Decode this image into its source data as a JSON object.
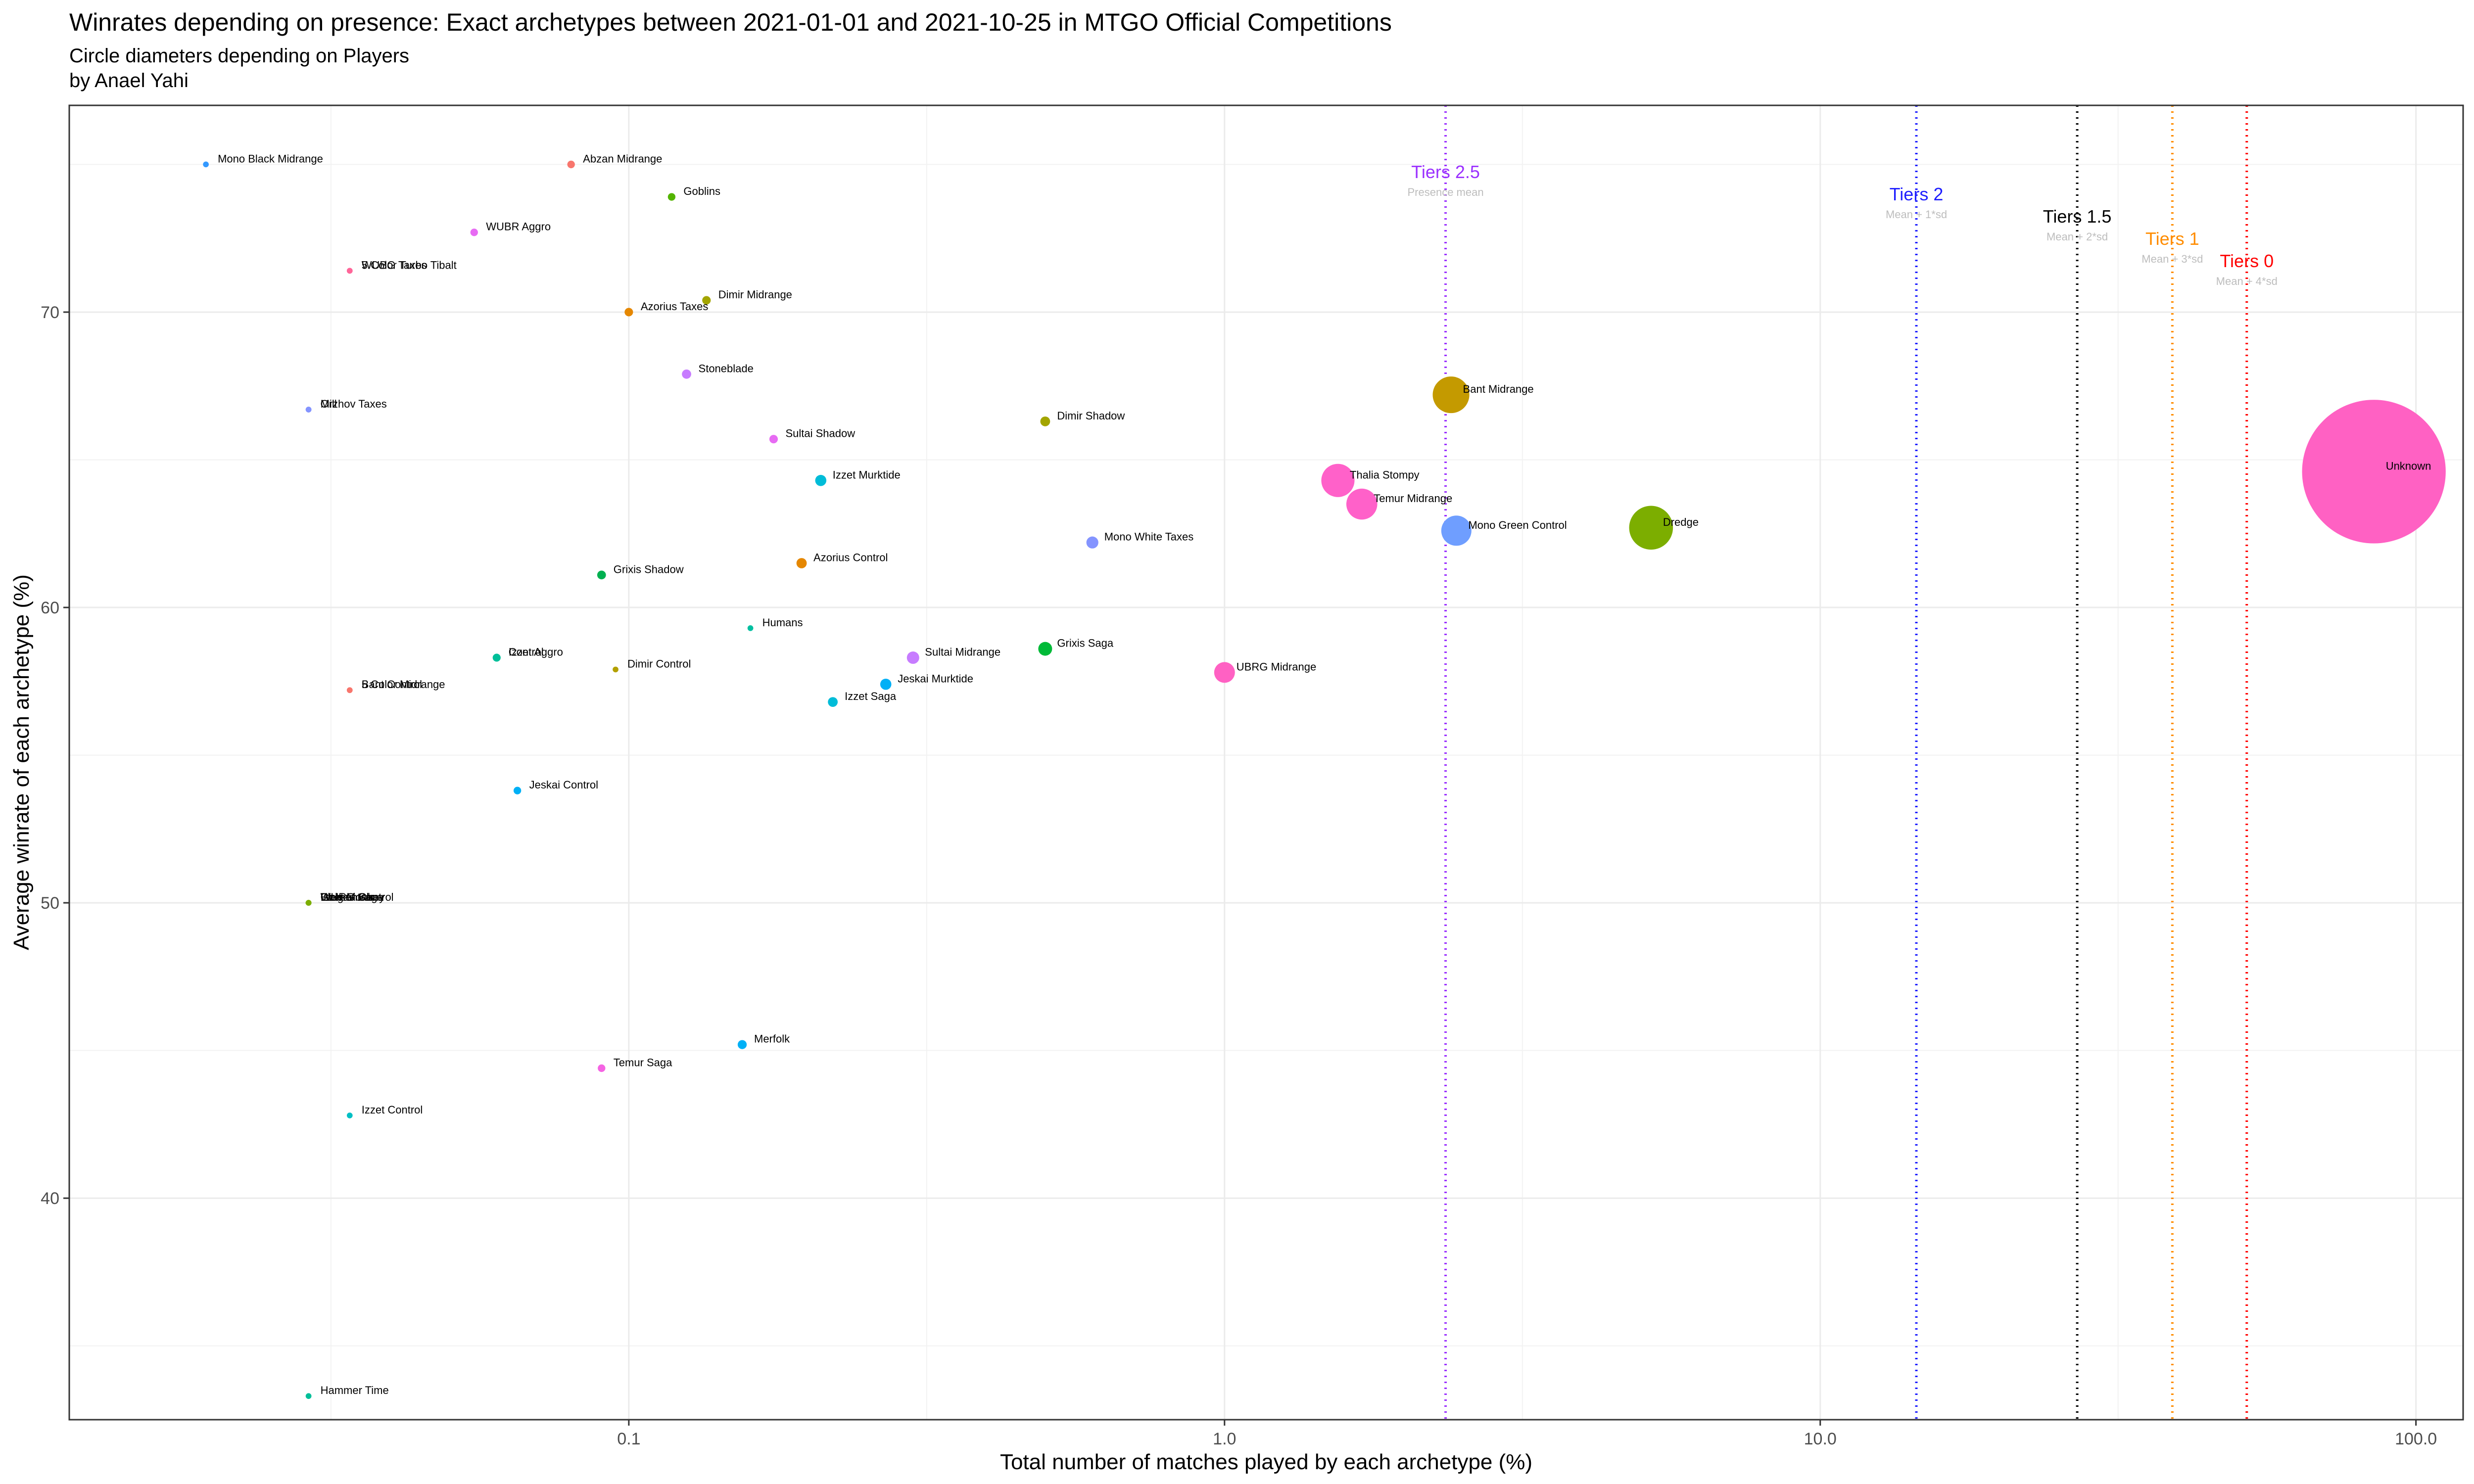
{
  "chart_data": {
    "type": "scatter",
    "title": "Winrates depending on presence: Exact archetypes  between 2021-01-01 and 2021-10-25 in MTGO Official Competitions",
    "subtitle": "Circle diameters depending on Players",
    "author": "by Anael Yahi",
    "xlabel": "Total number of matches played by each archetype (%)",
    "ylabel": "Average winrate of each archetype (%)",
    "x_scale": "log10",
    "xlim": [
      0.0115,
      120
    ],
    "ylim": [
      32.5,
      77
    ],
    "x_ticks": [
      0.1,
      1.0,
      10.0,
      100.0
    ],
    "x_tick_labels": [
      "0.1",
      "1.0",
      "10.0",
      "100.0"
    ],
    "y_ticks": [
      40,
      50,
      60,
      70
    ],
    "y_tick_labels": [
      "40",
      "50",
      "60",
      "70"
    ],
    "grid": true,
    "tiers": [
      {
        "name": "Tiers 2.5",
        "sub": "Presence mean",
        "x": 2.35,
        "color": "#9B30FF"
      },
      {
        "name": "Tiers 2",
        "sub": "Mean + 1*sd",
        "x": 14.5,
        "color": "#1E1EFF"
      },
      {
        "name": "Tiers 1.5",
        "sub": "Mean + 2*sd",
        "x": 27,
        "color": "#000000"
      },
      {
        "name": "Tiers 1",
        "sub": "Mean + 3*sd",
        "x": 39,
        "color": "#FF8C00"
      },
      {
        "name": "Tiers 0",
        "sub": "Mean + 4*sd",
        "x": 52,
        "color": "#FF0000"
      }
    ],
    "points": [
      {
        "name": "Mono Black Midrange",
        "x": 0.0195,
        "y": 75.0,
        "size": 0.7,
        "color": "#3399FF"
      },
      {
        "name": "Abzan Midrange",
        "x": 0.08,
        "y": 75.0,
        "size": 1.2,
        "color": "#F8766D"
      },
      {
        "name": "Goblins",
        "x": 0.118,
        "y": 73.9,
        "size": 1.2,
        "color": "#53B400"
      },
      {
        "name": "WUBR Aggro",
        "x": 0.055,
        "y": 72.7,
        "size": 1.2,
        "color": "#E76BF3"
      },
      {
        "name": "5 Color Turbo Tibalt",
        "x": 0.034,
        "y": 71.4,
        "size": 0.7,
        "color": "#FF6699"
      },
      {
        "name": "WUBG Taxes",
        "x": 0.034,
        "y": 71.4,
        "size": 0.7,
        "color": "#FF6699"
      },
      {
        "name": "Dimir Midrange",
        "x": 0.135,
        "y": 70.4,
        "size": 1.5,
        "color": "#A3A500"
      },
      {
        "name": "Azorius Taxes",
        "x": 0.1,
        "y": 70.0,
        "size": 1.5,
        "color": "#E58700"
      },
      {
        "name": "Stoneblade",
        "x": 0.125,
        "y": 67.9,
        "size": 1.8,
        "color": "#C77CFF"
      },
      {
        "name": "Orzhov Taxes",
        "x": 0.029,
        "y": 66.7,
        "size": 0.7,
        "color": "#8494FF"
      },
      {
        "name": "Mill",
        "x": 0.029,
        "y": 66.7,
        "size": 0.7,
        "color": "#8494FF"
      },
      {
        "name": "Sultai Shadow",
        "x": 0.175,
        "y": 65.7,
        "size": 1.5,
        "color": "#E76BF3"
      },
      {
        "name": "Dimir Shadow",
        "x": 0.5,
        "y": 66.3,
        "size": 2.0,
        "color": "#A3A500"
      },
      {
        "name": "Bant Midrange",
        "x": 2.4,
        "y": 67.2,
        "size": 28,
        "color": "#C49A00"
      },
      {
        "name": "Izzet Murktide",
        "x": 0.21,
        "y": 64.3,
        "size": 2.6,
        "color": "#00BCD8"
      },
      {
        "name": "Thalia Stompy",
        "x": 1.55,
        "y": 64.3,
        "size": 23,
        "color": "#FF61C9"
      },
      {
        "name": "Temur Midrange",
        "x": 1.7,
        "y": 63.5,
        "size": 20,
        "color": "#FF61C9"
      },
      {
        "name": "Mono Green Control",
        "x": 2.45,
        "y": 62.6,
        "size": 19,
        "color": "#6F9EFF"
      },
      {
        "name": "Dredge",
        "x": 5.2,
        "y": 62.7,
        "size": 40,
        "color": "#7CAE00"
      },
      {
        "name": "Unknown",
        "x": 85,
        "y": 64.6,
        "size": 430,
        "color": "#FF61C3"
      },
      {
        "name": "Mono White Taxes",
        "x": 0.6,
        "y": 62.2,
        "size": 3.0,
        "color": "#8494FF"
      },
      {
        "name": "Azorius Control",
        "x": 0.195,
        "y": 61.5,
        "size": 2.2,
        "color": "#E58700"
      },
      {
        "name": "Grixis Shadow",
        "x": 0.09,
        "y": 61.1,
        "size": 1.6,
        "color": "#00B050"
      },
      {
        "name": "Humans",
        "x": 0.16,
        "y": 59.3,
        "size": 0.7,
        "color": "#00BFA0"
      },
      {
        "name": "Grixis Saga",
        "x": 0.5,
        "y": 58.6,
        "size": 4.0,
        "color": "#00BA38"
      },
      {
        "name": "Sultai Midrange",
        "x": 0.3,
        "y": 58.3,
        "size": 3.2,
        "color": "#C77CFF"
      },
      {
        "name": "Izzet Aggro",
        "x": 0.06,
        "y": 58.3,
        "size": 1.3,
        "color": "#00BF99"
      },
      {
        "name": "Control",
        "x": 0.06,
        "y": 58.3,
        "size": 1.3,
        "color": "#00BF99"
      },
      {
        "name": "Dimir Control",
        "x": 0.095,
        "y": 57.9,
        "size": 0.7,
        "color": "#B3A000"
      },
      {
        "name": "Bant Control",
        "x": 0.034,
        "y": 57.2,
        "size": 0.7,
        "color": "#F8766D"
      },
      {
        "name": "5 Color Midrange",
        "x": 0.034,
        "y": 57.2,
        "size": 0.7,
        "color": "#F8766D"
      },
      {
        "name": "UBRG Midrange",
        "x": 1.0,
        "y": 57.8,
        "size": 9,
        "color": "#FF61C3"
      },
      {
        "name": "Jeskai Murktide",
        "x": 0.27,
        "y": 57.4,
        "size": 2.6,
        "color": "#00B0F6"
      },
      {
        "name": "Izzet Saga",
        "x": 0.22,
        "y": 56.8,
        "size": 2.0,
        "color": "#00BCD8"
      },
      {
        "name": "Jeskai Control",
        "x": 0.065,
        "y": 53.8,
        "size": 1.2,
        "color": "#00B0F6"
      },
      {
        "name": "Izzet Monkey",
        "x": 0.029,
        "y": 50.0,
        "size": 0.7,
        "color": "#7CAE00"
      },
      {
        "name": "Elementals",
        "x": 0.029,
        "y": 50.0,
        "size": 0.7,
        "color": "#7CAE00"
      },
      {
        "name": "WURG Saga",
        "x": 0.029,
        "y": 50.0,
        "size": 0.7,
        "color": "#7CAE00"
      },
      {
        "name": "Golgari Control",
        "x": 0.029,
        "y": 50.0,
        "size": 0.7,
        "color": "#7CAE00"
      },
      {
        "name": "Merfolk",
        "x": 0.155,
        "y": 45.2,
        "size": 1.7,
        "color": "#00B0F6"
      },
      {
        "name": "Temur Saga",
        "x": 0.09,
        "y": 44.4,
        "size": 1.2,
        "color": "#F564E3"
      },
      {
        "name": "Izzet Control",
        "x": 0.034,
        "y": 42.8,
        "size": 0.7,
        "color": "#00BFC4"
      },
      {
        "name": "Hammer Time",
        "x": 0.029,
        "y": 33.3,
        "size": 0.7,
        "color": "#00BF99"
      }
    ]
  }
}
